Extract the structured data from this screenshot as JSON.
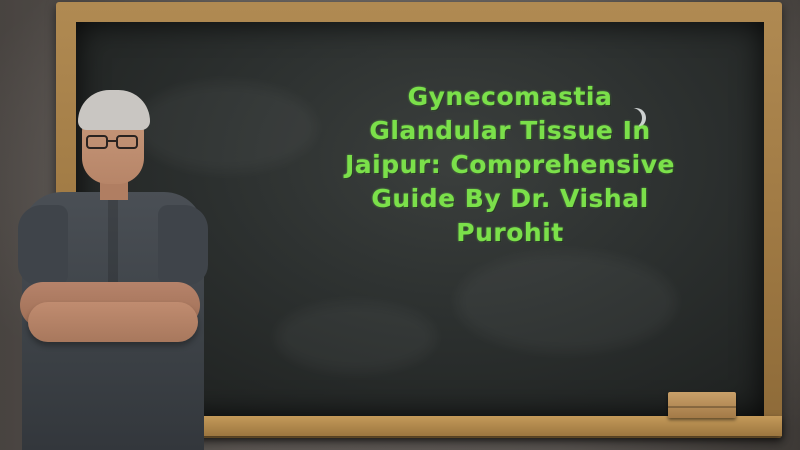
{
  "scene": {
    "chalkboard_text": "Gynecomastia\nGlandular Tissue In\nJaipur: Comprehensive\nGuide By Dr. Vishal\nPurohit"
  },
  "colors": {
    "chalk_text": "#7be04a",
    "board": "#2c302f",
    "frame": "#a07a44",
    "shirt": "#3c4146"
  }
}
